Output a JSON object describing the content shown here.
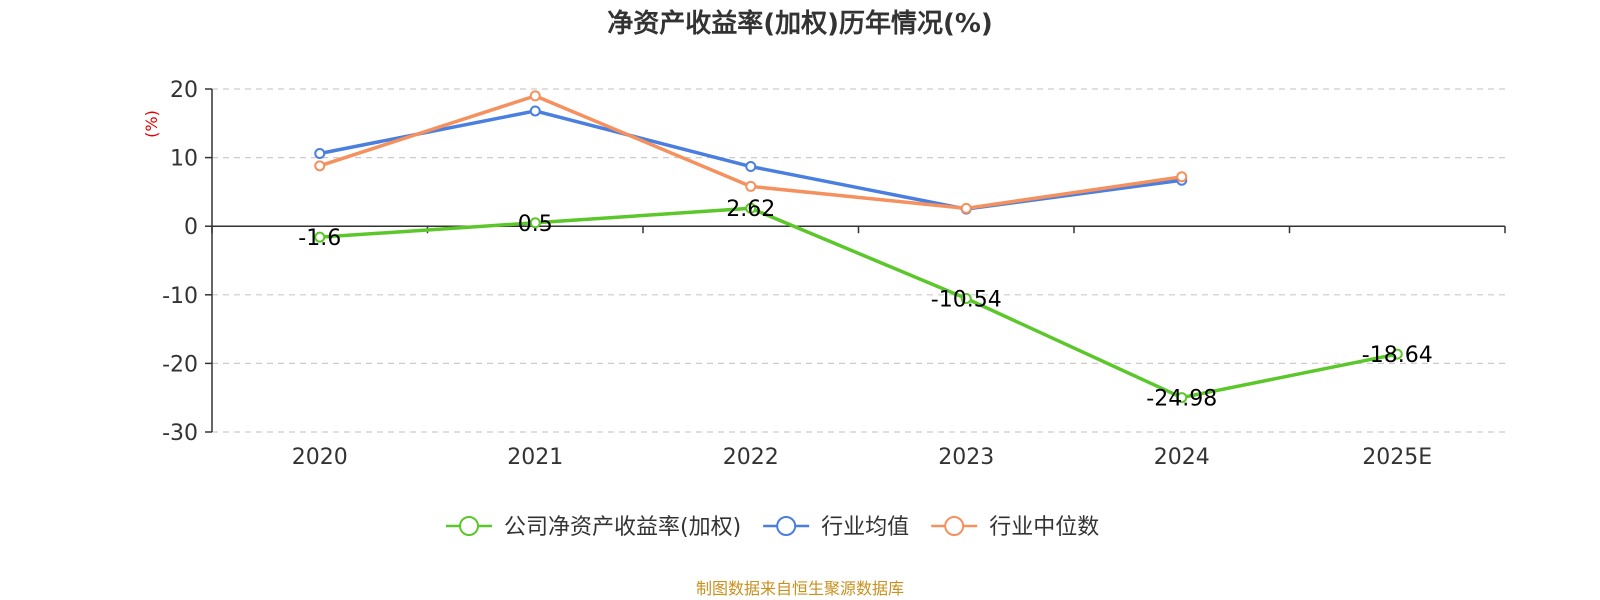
{
  "chart_data": {
    "type": "line",
    "title": "净资产收益率(加权)历年情况(%)",
    "y_unit": "(%)",
    "categories": [
      "2020",
      "2021",
      "2022",
      "2023",
      "2024",
      "2025E"
    ],
    "ylim": [
      -30,
      20
    ],
    "yticks": [
      20,
      10,
      0,
      -10,
      -20,
      -30
    ],
    "grid": true,
    "legend_position": "bottom-center",
    "series": [
      {
        "name": "公司净资产收益率(加权)",
        "color": "#5cc72a",
        "values": [
          -1.6,
          0.5,
          2.62,
          -10.54,
          -24.98,
          -18.64
        ],
        "labels": [
          "-1.6",
          "0.5",
          "2.62",
          "-10.54",
          "-24.98",
          "-18.64"
        ],
        "show_labels": true
      },
      {
        "name": "行业均值",
        "color": "#4a7fe0",
        "values": [
          10.6,
          16.8,
          8.7,
          2.5,
          6.7,
          null
        ],
        "show_labels": false
      },
      {
        "name": "行业中位数",
        "color": "#f4915e",
        "values": [
          8.8,
          19.0,
          5.8,
          2.6,
          7.2,
          null
        ],
        "show_labels": false
      }
    ]
  },
  "footer": {
    "source": "制图数据来自恒生聚源数据库"
  }
}
